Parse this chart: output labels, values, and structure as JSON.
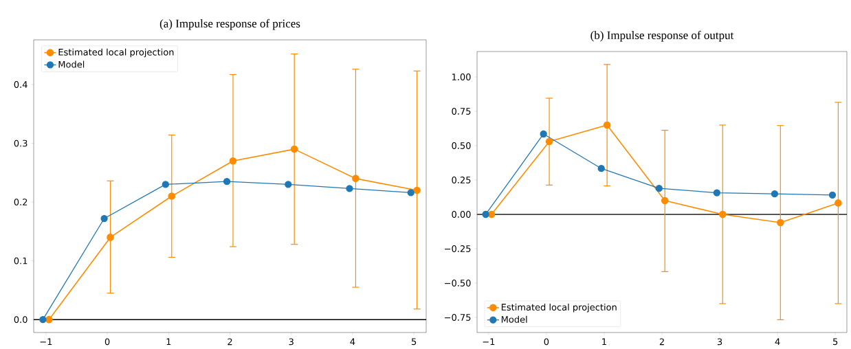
{
  "chart_data": [
    {
      "type": "line",
      "title": "(a) Impulse response of prices",
      "xlim": [
        -1.2,
        5.2
      ],
      "ylim": [
        -0.022,
        0.476
      ],
      "legend": "top left",
      "marker": "circle",
      "xticks": [
        {
          "value": -1,
          "label": "−1"
        },
        {
          "value": 0,
          "label": "0"
        },
        {
          "value": 1,
          "label": "1"
        },
        {
          "value": 2,
          "label": "2"
        },
        {
          "value": 3,
          "label": "3"
        },
        {
          "value": 4,
          "label": "4"
        },
        {
          "value": 5,
          "label": "5"
        }
      ],
      "yticks": [
        {
          "value": 0,
          "label": "0.0"
        },
        {
          "value": 0.1,
          "label": "0.1"
        },
        {
          "value": 0.2,
          "label": "0.2"
        },
        {
          "value": 0.3,
          "label": "0.3"
        },
        {
          "value": 0.4,
          "label": "0.4"
        }
      ],
      "ref_lines": [
        {
          "axis": "y",
          "value": 0,
          "color": "#000000"
        }
      ],
      "series": [
        {
          "name": "Estimated local projection",
          "color": "#ff8c00",
          "x": [
            -0.95,
            0.05,
            1.05,
            2.05,
            3.05,
            4.05,
            5.05
          ],
          "values": [
            0,
            0.14,
            0.21,
            0.27,
            0.29,
            0.24,
            0.22
          ],
          "errors": [
            null,
            [
              0.045,
              0.236
            ],
            [
              0.106,
              0.314
            ],
            [
              0.124,
              0.417
            ],
            [
              0.128,
              0.452
            ],
            [
              0.055,
              0.426
            ],
            [
              0.018,
              0.423
            ]
          ]
        },
        {
          "name": "Model",
          "color": "#1f77b4",
          "x": [
            -1.05,
            -0.05,
            0.95,
            1.95,
            2.95,
            3.95,
            4.95
          ],
          "values": [
            0,
            0.172,
            0.23,
            0.235,
            0.23,
            0.223,
            0.216
          ]
        }
      ]
    },
    {
      "type": "line",
      "title": "(b) Impulse response of output",
      "xlim": [
        -1.2,
        5.2
      ],
      "ylim": [
        -0.86,
        1.185
      ],
      "legend": "bottom left",
      "marker": "circle",
      "xticks": [
        {
          "value": -1,
          "label": "−1"
        },
        {
          "value": 0,
          "label": "0"
        },
        {
          "value": 1,
          "label": "1"
        },
        {
          "value": 2,
          "label": "2"
        },
        {
          "value": 3,
          "label": "3"
        },
        {
          "value": 4,
          "label": "4"
        },
        {
          "value": 5,
          "label": "5"
        }
      ],
      "yticks": [
        {
          "value": -0.75,
          "label": "−0.75"
        },
        {
          "value": -0.5,
          "label": "−0.50"
        },
        {
          "value": -0.25,
          "label": "−0.25"
        },
        {
          "value": 0,
          "label": "0.00"
        },
        {
          "value": 0.25,
          "label": "0.25"
        },
        {
          "value": 0.5,
          "label": "0.50"
        },
        {
          "value": 0.75,
          "label": "0.75"
        },
        {
          "value": 1,
          "label": "1.00"
        }
      ],
      "ref_lines": [
        {
          "axis": "y",
          "value": 0,
          "color": "#000000"
        }
      ],
      "series": [
        {
          "name": "Estimated local projection",
          "color": "#ff8c00",
          "x": [
            -0.95,
            0.05,
            1.05,
            2.05,
            3.05,
            4.05,
            5.05
          ],
          "values": [
            0,
            0.53,
            0.65,
            0.1,
            0.0,
            -0.06,
            0.083
          ],
          "errors": [
            null,
            [
              0.213,
              0.845
            ],
            [
              0.207,
              1.091
            ],
            [
              -0.417,
              0.612
            ],
            [
              -0.65,
              0.65
            ],
            [
              -0.767,
              0.646
            ],
            [
              -0.65,
              0.815
            ]
          ]
        },
        {
          "name": "Model",
          "color": "#1f77b4",
          "x": [
            -1.05,
            -0.05,
            0.95,
            1.95,
            2.95,
            3.95,
            4.95
          ],
          "values": [
            0,
            0.585,
            0.334,
            0.189,
            0.157,
            0.149,
            0.141
          ]
        }
      ]
    }
  ]
}
